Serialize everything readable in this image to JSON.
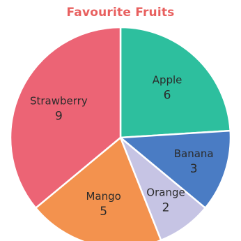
{
  "chart_data": {
    "type": "pie",
    "title": "Favourite Fruits",
    "title_color": "#e8605f",
    "slices": [
      {
        "label": "Apple",
        "value": 6,
        "color": "#2dbf9e"
      },
      {
        "label": "Banana",
        "value": 3,
        "color": "#4a7cc4"
      },
      {
        "label": "Orange",
        "value": 2,
        "color": "#c6c4e4"
      },
      {
        "label": "Mango",
        "value": 5,
        "color": "#f3924e"
      },
      {
        "label": "Strawberry",
        "value": 9,
        "color": "#ec6475"
      }
    ],
    "start_angle": "top",
    "direction": "clockwise",
    "legend": "none"
  }
}
